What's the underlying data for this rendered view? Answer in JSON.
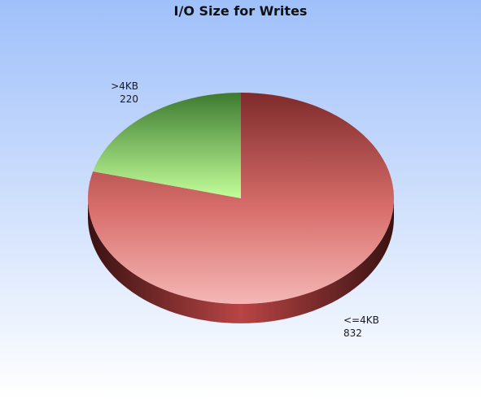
{
  "chart_data": {
    "type": "pie",
    "title": "I/O Size for Writes",
    "style": "3d",
    "legend": "none",
    "slices": [
      {
        "label": "<=4KB",
        "value": 832,
        "value_label": "832",
        "color_top": "#f4b7b5",
        "color_mid": "#d86e6b",
        "color_bottom": "#7e2b2b",
        "label_position": "bottom-right"
      },
      {
        "label": ">4KB",
        "value": 220,
        "value_label": "220",
        "color_top": "#c3ff99",
        "color_mid": "#86cf66",
        "color_bottom": "#3d7a2f",
        "label_position": "top-left"
      }
    ]
  },
  "background": {
    "top": "#9fc0fa",
    "bottom": "#ffffff"
  }
}
